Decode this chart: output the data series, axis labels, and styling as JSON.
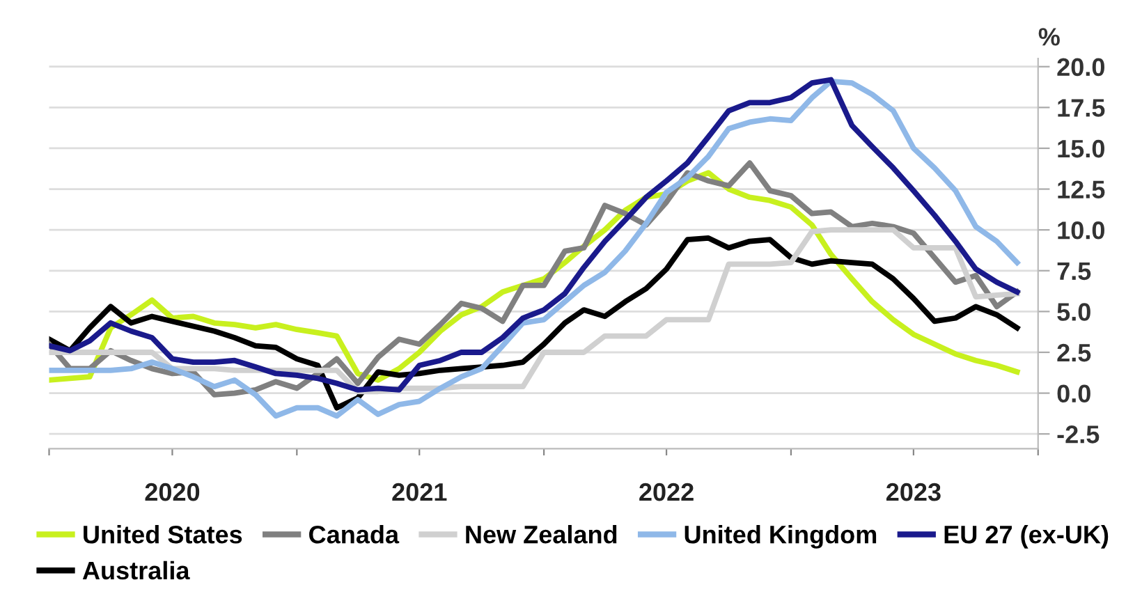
{
  "chart_data": {
    "type": "line",
    "ylabel": "%",
    "x": [
      "2020-01",
      "2020-02",
      "2020-03",
      "2020-04",
      "2020-05",
      "2020-06",
      "2020-07",
      "2020-08",
      "2020-09",
      "2020-10",
      "2020-11",
      "2020-12",
      "2021-01",
      "2021-02",
      "2021-03",
      "2021-04",
      "2021-05",
      "2021-06",
      "2021-07",
      "2021-08",
      "2021-09",
      "2021-10",
      "2021-11",
      "2021-12",
      "2022-01",
      "2022-02",
      "2022-03",
      "2022-04",
      "2022-05",
      "2022-06",
      "2022-07",
      "2022-08",
      "2022-09",
      "2022-10",
      "2022-11",
      "2022-12",
      "2023-01",
      "2023-02",
      "2023-03",
      "2023-04",
      "2023-05",
      "2023-06",
      "2023-07",
      "2023-08",
      "2023-09",
      "2023-10",
      "2023-11",
      "2023-12"
    ],
    "series": [
      {
        "name": "United States",
        "color": "#c8f01e",
        "values": [
          0.8,
          0.9,
          1.0,
          4.0,
          4.8,
          5.7,
          4.6,
          4.7,
          4.3,
          4.2,
          4.0,
          4.2,
          3.9,
          3.7,
          3.5,
          1.2,
          0.8,
          1.5,
          2.5,
          3.8,
          4.8,
          5.3,
          6.2,
          6.6,
          7.0,
          8.0,
          9.0,
          10.0,
          11.2,
          12.0,
          12.2,
          13.0,
          13.5,
          12.5,
          12.0,
          11.8,
          11.4,
          10.3,
          8.5,
          7.0,
          5.6,
          4.5,
          3.6,
          3.0,
          2.4,
          2.0,
          1.7,
          1.3
        ]
      },
      {
        "name": "Australia",
        "color": "#000000",
        "values": [
          3.3,
          2.6,
          4.0,
          5.3,
          4.3,
          4.7,
          4.4,
          4.1,
          3.8,
          3.4,
          2.9,
          2.8,
          2.1,
          1.7,
          -0.9,
          -0.3,
          1.3,
          1.1,
          1.2,
          1.4,
          1.5,
          1.6,
          1.7,
          1.9,
          3.0,
          4.3,
          5.1,
          4.7,
          5.6,
          6.4,
          7.6,
          9.4,
          9.5,
          8.9,
          9.3,
          9.4,
          8.3,
          7.9,
          8.1,
          8.0,
          7.9,
          7.0,
          5.8,
          4.4,
          4.6,
          5.3,
          4.8,
          4.0
        ]
      },
      {
        "name": "Canada",
        "color": "#808080",
        "values": [
          3.0,
          1.5,
          1.5,
          2.6,
          2.0,
          1.5,
          1.2,
          1.3,
          -0.1,
          0.0,
          0.2,
          0.7,
          0.3,
          1.2,
          2.1,
          0.6,
          2.2,
          3.3,
          3.0,
          4.2,
          5.5,
          5.2,
          4.4,
          6.6,
          6.6,
          8.7,
          8.9,
          11.5,
          11.0,
          10.3,
          11.7,
          13.5,
          13.0,
          12.7,
          14.1,
          12.4,
          12.1,
          11.0,
          11.1,
          10.2,
          10.4,
          10.2,
          9.8,
          8.3,
          6.8,
          7.2,
          5.3,
          6.2
        ]
      },
      {
        "name": "New Zealand",
        "color": "#d0d0d0",
        "values": [
          2.5,
          2.5,
          2.5,
          2.5,
          2.5,
          2.5,
          1.5,
          1.5,
          1.5,
          1.4,
          1.4,
          1.4,
          1.4,
          1.4,
          1.4,
          0.1,
          0.1,
          0.3,
          0.3,
          0.3,
          0.4,
          0.4,
          0.4,
          0.4,
          2.5,
          2.5,
          2.5,
          3.5,
          3.5,
          3.5,
          4.5,
          4.5,
          4.5,
          7.9,
          7.9,
          7.9,
          8.0,
          9.9,
          10.0,
          10.0,
          10.0,
          10.0,
          8.9,
          8.9,
          8.9,
          5.9,
          6.0,
          6.1
        ]
      },
      {
        "name": "United Kingdom",
        "color": "#8fb8e8",
        "values": [
          1.4,
          1.4,
          1.4,
          1.4,
          1.5,
          1.9,
          1.5,
          1.0,
          0.4,
          0.8,
          -0.1,
          -1.4,
          -0.9,
          -0.9,
          -1.4,
          -0.4,
          -1.3,
          -0.7,
          -0.5,
          0.3,
          1.0,
          1.5,
          2.9,
          4.3,
          4.5,
          5.6,
          6.6,
          7.4,
          8.7,
          10.4,
          12.3,
          13.2,
          14.5,
          16.2,
          16.6,
          16.8,
          16.7,
          18.1,
          19.1,
          19.0,
          18.3,
          17.3,
          15.0,
          13.8,
          12.4,
          10.2,
          9.3,
          8.0
        ]
      },
      {
        "name": "EU 27 (ex-UK)",
        "color": "#1a1a8c",
        "values": [
          2.9,
          2.6,
          3.2,
          4.3,
          3.8,
          3.4,
          2.1,
          1.9,
          1.9,
          2.0,
          1.6,
          1.2,
          1.1,
          0.9,
          0.6,
          0.2,
          0.3,
          0.2,
          1.7,
          2.0,
          2.5,
          2.5,
          3.4,
          4.6,
          5.1,
          6.1,
          7.7,
          9.3,
          10.6,
          12.0,
          13.0,
          14.1,
          15.7,
          17.3,
          17.8,
          17.8,
          18.1,
          19.0,
          19.2,
          16.4,
          15.1,
          13.8,
          12.4,
          10.9,
          9.3,
          7.6,
          6.8,
          6.2
        ]
      }
    ],
    "xlim": [
      "2020-01-01",
      "2024-01-01"
    ],
    "xticks": [
      {
        "value": "2020-01-01",
        "label": null
      },
      {
        "value": "2020-07-01",
        "label": "2020"
      },
      {
        "value": "2021-01-01",
        "label": null
      },
      {
        "value": "2021-07-01",
        "label": "2021"
      },
      {
        "value": "2022-01-01",
        "label": null
      },
      {
        "value": "2022-07-01",
        "label": "2022"
      },
      {
        "value": "2023-01-01",
        "label": null
      },
      {
        "value": "2023-07-01",
        "label": "2023"
      },
      {
        "value": "2024-01-01",
        "label": null
      }
    ],
    "ylim": [
      -3.4,
      20.5
    ],
    "yticks": [
      {
        "value": -2.5,
        "label": "-2.5"
      },
      {
        "value": 0,
        "label": "0.0"
      },
      {
        "value": 2.5,
        "label": "2.5"
      },
      {
        "value": 5,
        "label": "5.0"
      },
      {
        "value": 7.5,
        "label": "7.5"
      },
      {
        "value": 10,
        "label": "10.0"
      },
      {
        "value": 12.5,
        "label": "12.5"
      },
      {
        "value": 15,
        "label": "15.0"
      },
      {
        "value": 17.5,
        "label": "17.5"
      },
      {
        "value": 20,
        "label": "20.0"
      }
    ],
    "grid": "y",
    "legend": "bottom",
    "marker": "none",
    "line_style": "solid"
  }
}
